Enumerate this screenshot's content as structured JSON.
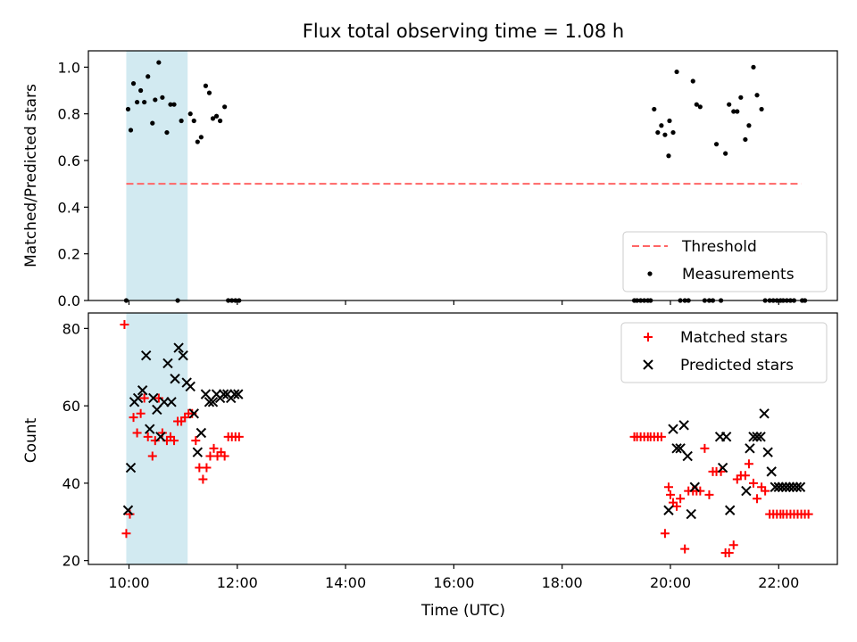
{
  "chart_data": [
    {
      "type": "scatter",
      "title": "Flux total observing time = 1.08 h",
      "xlabel": "",
      "ylabel": "Matched/Predicted stars",
      "xlim": [
        "09:15",
        "23:05"
      ],
      "ylim": [
        0,
        1.07
      ],
      "yticks": [
        0.0,
        0.2,
        0.4,
        0.6,
        0.8,
        1.0
      ],
      "ytick_labels": [
        "0.0",
        "0.2",
        "0.4",
        "0.6",
        "0.8",
        "1.0"
      ],
      "shaded_span": {
        "x": [
          "09:57",
          "11:05"
        ],
        "color": "#add8e6"
      },
      "legend": {
        "position": "lower right",
        "entries": [
          "Threshold",
          "Measurements"
        ]
      },
      "series": [
        {
          "name": "Threshold",
          "kind": "dashed-line",
          "color": "#ff6666",
          "x": [
            "09:57",
            "22:25"
          ],
          "y": [
            0.5,
            0.5
          ]
        },
        {
          "name": "Measurements",
          "kind": "dots",
          "color": "#000000",
          "x": [
            "09:57",
            "09:59",
            "10:02",
            "10:05",
            "10:09",
            "10:13",
            "10:17",
            "10:21",
            "10:26",
            "10:29",
            "10:33",
            "10:37",
            "10:42",
            "10:46",
            "10:50",
            "10:54",
            "10:58",
            "11:08",
            "11:12",
            "11:16",
            "11:20",
            "11:25",
            "11:29",
            "11:33",
            "11:37",
            "11:41",
            "11:46",
            "11:50",
            "11:54",
            "11:58",
            "12:02",
            "19:20",
            "19:23",
            "19:27",
            "19:31",
            "19:35",
            "19:38",
            "19:42",
            "19:46",
            "19:50",
            "19:54",
            "19:58",
            "19:59",
            "20:03",
            "20:07",
            "20:11",
            "20:16",
            "20:20",
            "20:25",
            "20:29",
            "20:33",
            "20:38",
            "20:43",
            "20:47",
            "20:51",
            "20:56",
            "21:01",
            "21:05",
            "21:10",
            "21:14",
            "21:18",
            "21:23",
            "21:27",
            "21:32",
            "21:36",
            "21:41",
            "21:45",
            "21:50",
            "21:54",
            "21:58",
            "22:02",
            "22:05",
            "22:09",
            "22:13",
            "22:17",
            "22:26",
            "22:29"
          ],
          "y": [
            0.0,
            0.82,
            0.73,
            0.93,
            0.85,
            0.9,
            0.85,
            0.96,
            0.76,
            0.86,
            1.02,
            0.87,
            0.72,
            0.84,
            0.84,
            0.0,
            0.77,
            0.8,
            0.77,
            0.68,
            0.7,
            0.92,
            0.89,
            0.78,
            0.79,
            0.77,
            0.83,
            0.0,
            0.0,
            0.0,
            0.0,
            0.0,
            0.0,
            0.0,
            0.0,
            0.0,
            0.0,
            0.82,
            0.72,
            0.75,
            0.71,
            0.62,
            0.77,
            0.72,
            0.98,
            0.0,
            0.0,
            0.0,
            0.94,
            0.84,
            0.83,
            0.0,
            0.0,
            0.0,
            0.67,
            0.0,
            0.63,
            0.84,
            0.81,
            0.81,
            0.87,
            0.69,
            0.75,
            1.0,
            0.88,
            0.82,
            0.0,
            0.0,
            0.0,
            0.0,
            0.0,
            0.0,
            0.0,
            0.0,
            0.0,
            0.0,
            0.0
          ]
        }
      ]
    },
    {
      "type": "scatter",
      "title": "",
      "xlabel": "Time (UTC)",
      "ylabel": "Count",
      "xlim": [
        "09:15",
        "23:05"
      ],
      "ylim": [
        19,
        84
      ],
      "yticks": [
        20,
        40,
        60,
        80
      ],
      "ytick_labels": [
        "20",
        "40",
        "60",
        "80"
      ],
      "xticks": [
        "10:00",
        "12:00",
        "14:00",
        "16:00",
        "18:00",
        "20:00",
        "22:00"
      ],
      "shaded_span": {
        "x": [
          "09:57",
          "11:05"
        ],
        "color": "#add8e6"
      },
      "legend": {
        "position": "upper right",
        "entries": [
          "Matched stars",
          "Predicted stars"
        ]
      },
      "series": [
        {
          "name": "Matched stars",
          "kind": "plus",
          "color": "#ff0000",
          "x": [
            "09:55",
            "09:57",
            "10:01",
            "10:05",
            "10:09",
            "10:13",
            "10:17",
            "10:21",
            "10:26",
            "10:29",
            "10:33",
            "10:37",
            "10:42",
            "10:46",
            "10:50",
            "10:54",
            "10:58",
            "11:02",
            "11:06",
            "11:10",
            "11:14",
            "11:18",
            "11:22",
            "11:26",
            "11:30",
            "11:34",
            "11:38",
            "11:42",
            "11:46",
            "11:50",
            "11:54",
            "11:58",
            "12:02",
            "19:20",
            "19:23",
            "19:27",
            "19:31",
            "19:35",
            "19:38",
            "19:42",
            "19:46",
            "19:50",
            "19:54",
            "19:58",
            "20:00",
            "20:03",
            "20:07",
            "20:11",
            "20:16",
            "20:20",
            "20:25",
            "20:29",
            "20:33",
            "20:38",
            "20:43",
            "20:47",
            "20:51",
            "20:56",
            "21:01",
            "21:05",
            "21:10",
            "21:14",
            "21:18",
            "21:23",
            "21:27",
            "21:32",
            "21:36",
            "21:41",
            "21:45",
            "21:50",
            "21:54",
            "21:58",
            "22:02",
            "22:05",
            "22:09",
            "22:13",
            "22:17",
            "22:21",
            "22:25",
            "22:29",
            "22:33"
          ],
          "y": [
            81,
            27,
            32,
            57,
            53,
            58,
            62,
            52,
            47,
            51,
            62,
            53,
            51,
            52,
            51,
            56,
            56,
            57,
            58,
            58,
            51,
            44,
            41,
            44,
            47,
            49,
            47,
            48,
            47,
            52,
            52,
            52,
            52,
            52,
            52,
            52,
            52,
            52,
            52,
            52,
            52,
            52,
            27,
            39,
            37,
            35,
            34,
            36,
            23,
            38,
            38,
            38,
            38,
            49,
            37,
            43,
            43,
            43,
            22,
            22,
            24,
            41,
            42,
            42,
            45,
            40,
            36,
            39,
            38,
            32,
            32,
            32,
            32,
            32,
            32,
            32,
            32,
            32,
            32,
            32,
            32
          ],
          "_note_hidden": false
        },
        {
          "name": "Predicted stars",
          "kind": "x",
          "color": "#000000",
          "x": [
            "09:59",
            "10:02",
            "10:06",
            "10:10",
            "10:15",
            "10:19",
            "10:23",
            "10:27",
            "10:31",
            "10:35",
            "10:39",
            "10:43",
            "10:47",
            "10:51",
            "10:55",
            "11:00",
            "11:04",
            "11:08",
            "11:12",
            "11:16",
            "11:20",
            "11:25",
            "11:29",
            "11:33",
            "11:37",
            "11:41",
            "11:45",
            "11:49",
            "11:53",
            "11:57",
            "12:01",
            "19:58",
            "20:03",
            "20:07",
            "20:11",
            "20:15",
            "20:19",
            "20:23",
            "20:27",
            "20:55",
            "20:58",
            "21:02",
            "21:06",
            "21:24",
            "21:28",
            "21:32",
            "21:36",
            "21:40",
            "21:44",
            "21:48",
            "21:52",
            "21:56",
            "22:00",
            "22:04",
            "22:08",
            "22:12",
            "22:16",
            "22:20",
            "22:24"
          ],
          "y": [
            33,
            44,
            61,
            62,
            64,
            73,
            54,
            62,
            59,
            52,
            61,
            71,
            61,
            67,
            75,
            73,
            66,
            65,
            58,
            48,
            53,
            63,
            61,
            61,
            63,
            62,
            63,
            63,
            62,
            63,
            63,
            33,
            54,
            49,
            49,
            55,
            47,
            32,
            39,
            52,
            44,
            52,
            33,
            38,
            49,
            52,
            52,
            52,
            58,
            48,
            43,
            39,
            39,
            39,
            39,
            39,
            39,
            39,
            39
          ],
          "_note_hidden": false
        }
      ]
    }
  ]
}
